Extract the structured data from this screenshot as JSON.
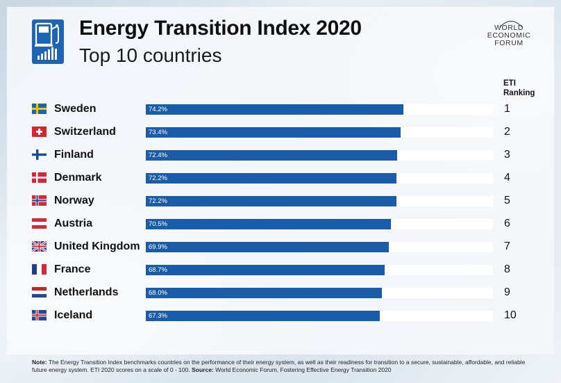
{
  "header": {
    "title": "Energy Transition Index 2020",
    "subtitle": "Top 10 countries",
    "brand": [
      "WORLD",
      "ECONOMIC",
      "FORUM"
    ],
    "logo_icon": "fuel-pump-chart-icon"
  },
  "rank_header": [
    "ETI",
    "Ranking"
  ],
  "colors": {
    "bar": "#1a5ca8",
    "track": "#ffffff",
    "logo": "#1c64b4"
  },
  "chart_data": {
    "type": "bar",
    "orientation": "horizontal",
    "title": "Energy Transition Index 2020",
    "subtitle": "Top 10 countries",
    "xlim": [
      0,
      100
    ],
    "grid": false,
    "categories": [
      "Sweden",
      "Switzerland",
      "Finland",
      "Denmark",
      "Norway",
      "Austria",
      "United Kingdom",
      "France",
      "Netherlands",
      "Iceland"
    ],
    "values": [
      74.2,
      73.4,
      72.4,
      72.2,
      72.2,
      70.5,
      69.9,
      68.7,
      68.0,
      67.3
    ],
    "value_labels": [
      "74.2%",
      "73.4%",
      "72.4%",
      "72.2%",
      "72.2%",
      "70.5%",
      "69.9%",
      "68.7%",
      "68.0%",
      "67.3%"
    ],
    "ranks": [
      "1",
      "2",
      "3",
      "4",
      "5",
      "6",
      "7",
      "8",
      "9",
      "10"
    ],
    "flags": [
      "sweden-flag-icon",
      "switzerland-flag-icon",
      "finland-flag-icon",
      "denmark-flag-icon",
      "norway-flag-icon",
      "austria-flag-icon",
      "united-kingdom-flag-icon",
      "france-flag-icon",
      "netherlands-flag-icon",
      "iceland-flag-icon"
    ]
  },
  "note": {
    "label": "Note:",
    "text": "The Energy Transition Index benchmarks countries on the performance of their energy system, as well as their readiness for transition to a secure, sustainable, affordable, and reliable future energy system. ETI 2020 scores on a scale of 0 - 100.",
    "source_label": "Source:",
    "source": "World Economic Forum, Fostering Effective Energy Transition 2020"
  }
}
